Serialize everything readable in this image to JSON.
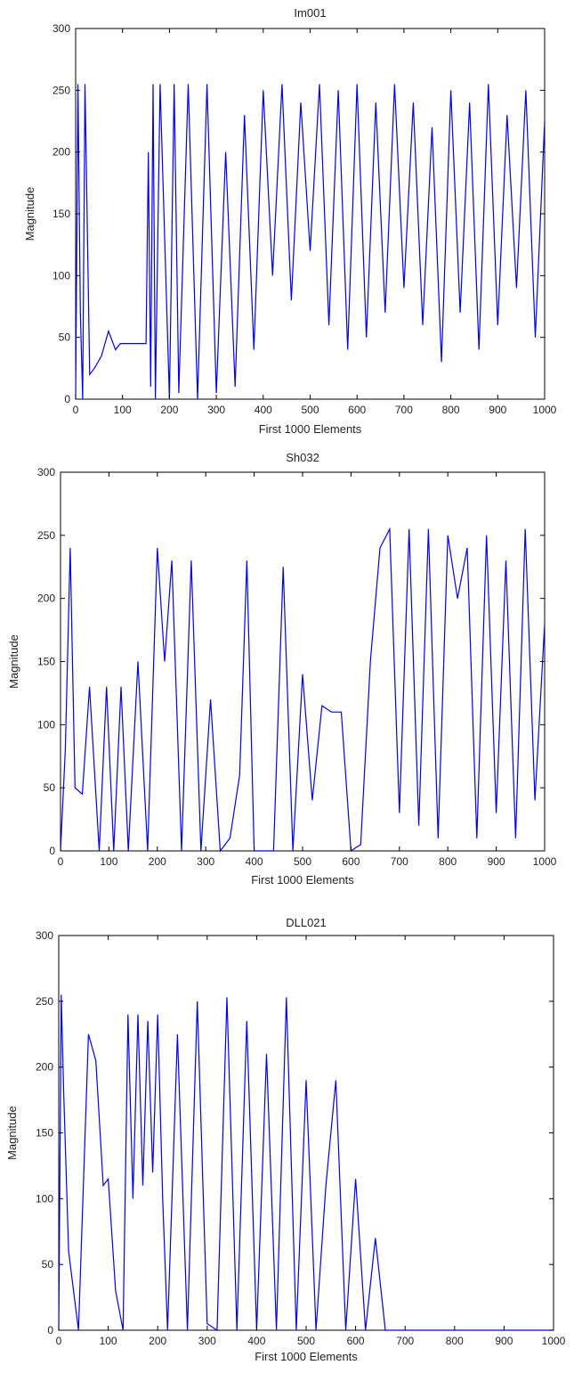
{
  "colors": {
    "line": "#0000ee",
    "axes": "#000000",
    "background": "#ffffff"
  },
  "chart_data": [
    {
      "type": "line",
      "title": "Im001",
      "xlabel": "First 1000 Elements",
      "ylabel": "Magnitude",
      "xlim": [
        0,
        1000
      ],
      "ylim": [
        0,
        300
      ],
      "xticks": [
        "0",
        "100",
        "200",
        "300",
        "400",
        "500",
        "600",
        "700",
        "800",
        "900",
        "1000"
      ],
      "yticks": [
        "0",
        "50",
        "100",
        "150",
        "200",
        "250",
        "300"
      ],
      "grid": false,
      "series": [
        {
          "x": [
            0,
            5,
            10,
            15,
            20,
            30,
            40,
            55,
            70,
            85,
            95,
            105,
            110,
            120,
            140,
            150,
            155,
            160,
            165,
            170,
            180,
            200,
            210,
            220,
            240,
            260,
            280,
            300,
            320,
            340,
            360,
            380,
            400,
            420,
            440,
            460,
            480,
            500,
            520,
            540,
            560,
            580,
            600,
            620,
            640,
            660,
            680,
            700,
            720,
            740,
            760,
            780,
            800,
            820,
            840,
            860,
            880,
            900,
            920,
            940,
            960,
            980,
            1000
          ],
          "y": [
            0,
            255,
            70,
            0,
            255,
            20,
            25,
            35,
            55,
            40,
            45,
            45,
            45,
            45,
            45,
            45,
            200,
            10,
            255,
            0,
            255,
            0,
            255,
            5,
            255,
            0,
            255,
            5,
            200,
            10,
            230,
            40,
            250,
            100,
            255,
            80,
            240,
            120,
            255,
            60,
            250,
            40,
            255,
            50,
            240,
            70,
            255,
            90,
            240,
            60,
            220,
            30,
            250,
            70,
            240,
            40,
            255,
            60,
            230,
            90,
            250,
            50,
            225
          ]
        }
      ]
    },
    {
      "type": "line",
      "title": "Sh032",
      "xlabel": "First 1000 Elements",
      "ylabel": "Magnitude",
      "xlim": [
        0,
        1000
      ],
      "ylim": [
        0,
        300
      ],
      "xticks": [
        "0",
        "100",
        "200",
        "300",
        "400",
        "500",
        "600",
        "700",
        "800",
        "900",
        "1000"
      ],
      "yticks": [
        "0",
        "50",
        "100",
        "150",
        "200",
        "250",
        "300"
      ],
      "grid": false,
      "series": [
        {
          "x": [
            0,
            10,
            20,
            30,
            45,
            60,
            80,
            95,
            110,
            125,
            140,
            160,
            180,
            200,
            215,
            230,
            250,
            270,
            290,
            310,
            330,
            350,
            370,
            385,
            400,
            420,
            440,
            460,
            480,
            500,
            520,
            540,
            560,
            580,
            600,
            620,
            640,
            660,
            680,
            700,
            720,
            740,
            760,
            780,
            800,
            820,
            840,
            860,
            880,
            900,
            920,
            940,
            960,
            980,
            1000
          ],
          "y": [
            0,
            80,
            240,
            50,
            45,
            130,
            0,
            130,
            0,
            130,
            0,
            150,
            0,
            240,
            150,
            230,
            0,
            230,
            0,
            120,
            0,
            10,
            60,
            230,
            0,
            0,
            0,
            225,
            0,
            140,
            40,
            115,
            110,
            110,
            0,
            5,
            150,
            240,
            255,
            30,
            255,
            20,
            255,
            10,
            250,
            200,
            240,
            10,
            250,
            30,
            230,
            10,
            255,
            40,
            180
          ]
        }
      ]
    },
    {
      "type": "line",
      "title": "DLL021",
      "xlabel": "First 1000 Elements",
      "ylabel": "Magnitude",
      "xlim": [
        0,
        1000
      ],
      "ylim": [
        0,
        300
      ],
      "xticks": [
        "0",
        "100",
        "200",
        "300",
        "400",
        "500",
        "600",
        "700",
        "800",
        "900",
        "1000"
      ],
      "yticks": [
        "0",
        "50",
        "100",
        "150",
        "200",
        "250",
        "300"
      ],
      "grid": false,
      "series": [
        {
          "x": [
            0,
            5,
            10,
            20,
            40,
            60,
            75,
            90,
            100,
            115,
            130,
            140,
            150,
            160,
            170,
            180,
            190,
            200,
            210,
            220,
            240,
            260,
            280,
            300,
            320,
            340,
            360,
            380,
            400,
            420,
            440,
            460,
            480,
            500,
            520,
            540,
            560,
            580,
            600,
            620,
            640,
            660,
            700,
            800,
            900,
            1000
          ],
          "y": [
            0,
            255,
            180,
            60,
            0,
            225,
            205,
            110,
            115,
            30,
            0,
            240,
            100,
            240,
            110,
            235,
            120,
            240,
            100,
            0,
            225,
            0,
            250,
            5,
            0,
            253,
            0,
            235,
            0,
            210,
            0,
            253,
            0,
            190,
            0,
            110,
            190,
            0,
            115,
            0,
            70,
            0,
            0,
            0,
            0,
            0
          ]
        }
      ]
    }
  ]
}
